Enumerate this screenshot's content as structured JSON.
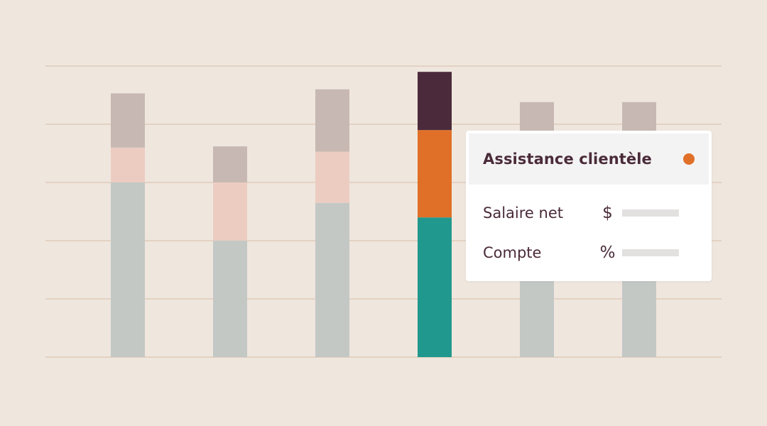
{
  "colors": {
    "background": "#efe6de",
    "gridline": "#dfcbb9",
    "segment_bottom": "#c3c8c5",
    "segment_middle": "#ecccc1",
    "segment_top": "#c7b8b3",
    "highlight_bottom": "#21988d",
    "highlight_middle": "#e07028",
    "highlight_top": "#4b2b3b",
    "text": "#4a2b39",
    "placeholder_bar": "#e3e0e0"
  },
  "chart_data": {
    "type": "bar",
    "stacked": true,
    "title": "",
    "xlabel": "",
    "ylabel": "",
    "ylim": [
      0,
      5
    ],
    "grid": true,
    "gridlines": [
      1,
      2,
      3,
      4,
      5
    ],
    "categories": [
      "",
      "",
      "",
      "",
      "",
      ""
    ],
    "highlighted_index": 3,
    "series": [
      {
        "values": [
          3.0,
          2.0,
          2.65,
          2.4,
          2.0,
          2.0
        ]
      },
      {
        "values": [
          0.6,
          1.0,
          0.88,
          1.5,
          1.6,
          1.6
        ]
      },
      {
        "values": [
          0.93,
          0.62,
          1.07,
          1.0,
          0.78,
          0.78
        ]
      }
    ]
  },
  "tooltip": {
    "title": "Assistance clientèle",
    "dot_color": "#e07028",
    "rows": [
      {
        "label": "Salaire net",
        "symbol": "$",
        "symbol_icon": "dollar-icon"
      },
      {
        "label": "Compte",
        "symbol": "%",
        "symbol_icon": "percent-icon"
      }
    ]
  }
}
